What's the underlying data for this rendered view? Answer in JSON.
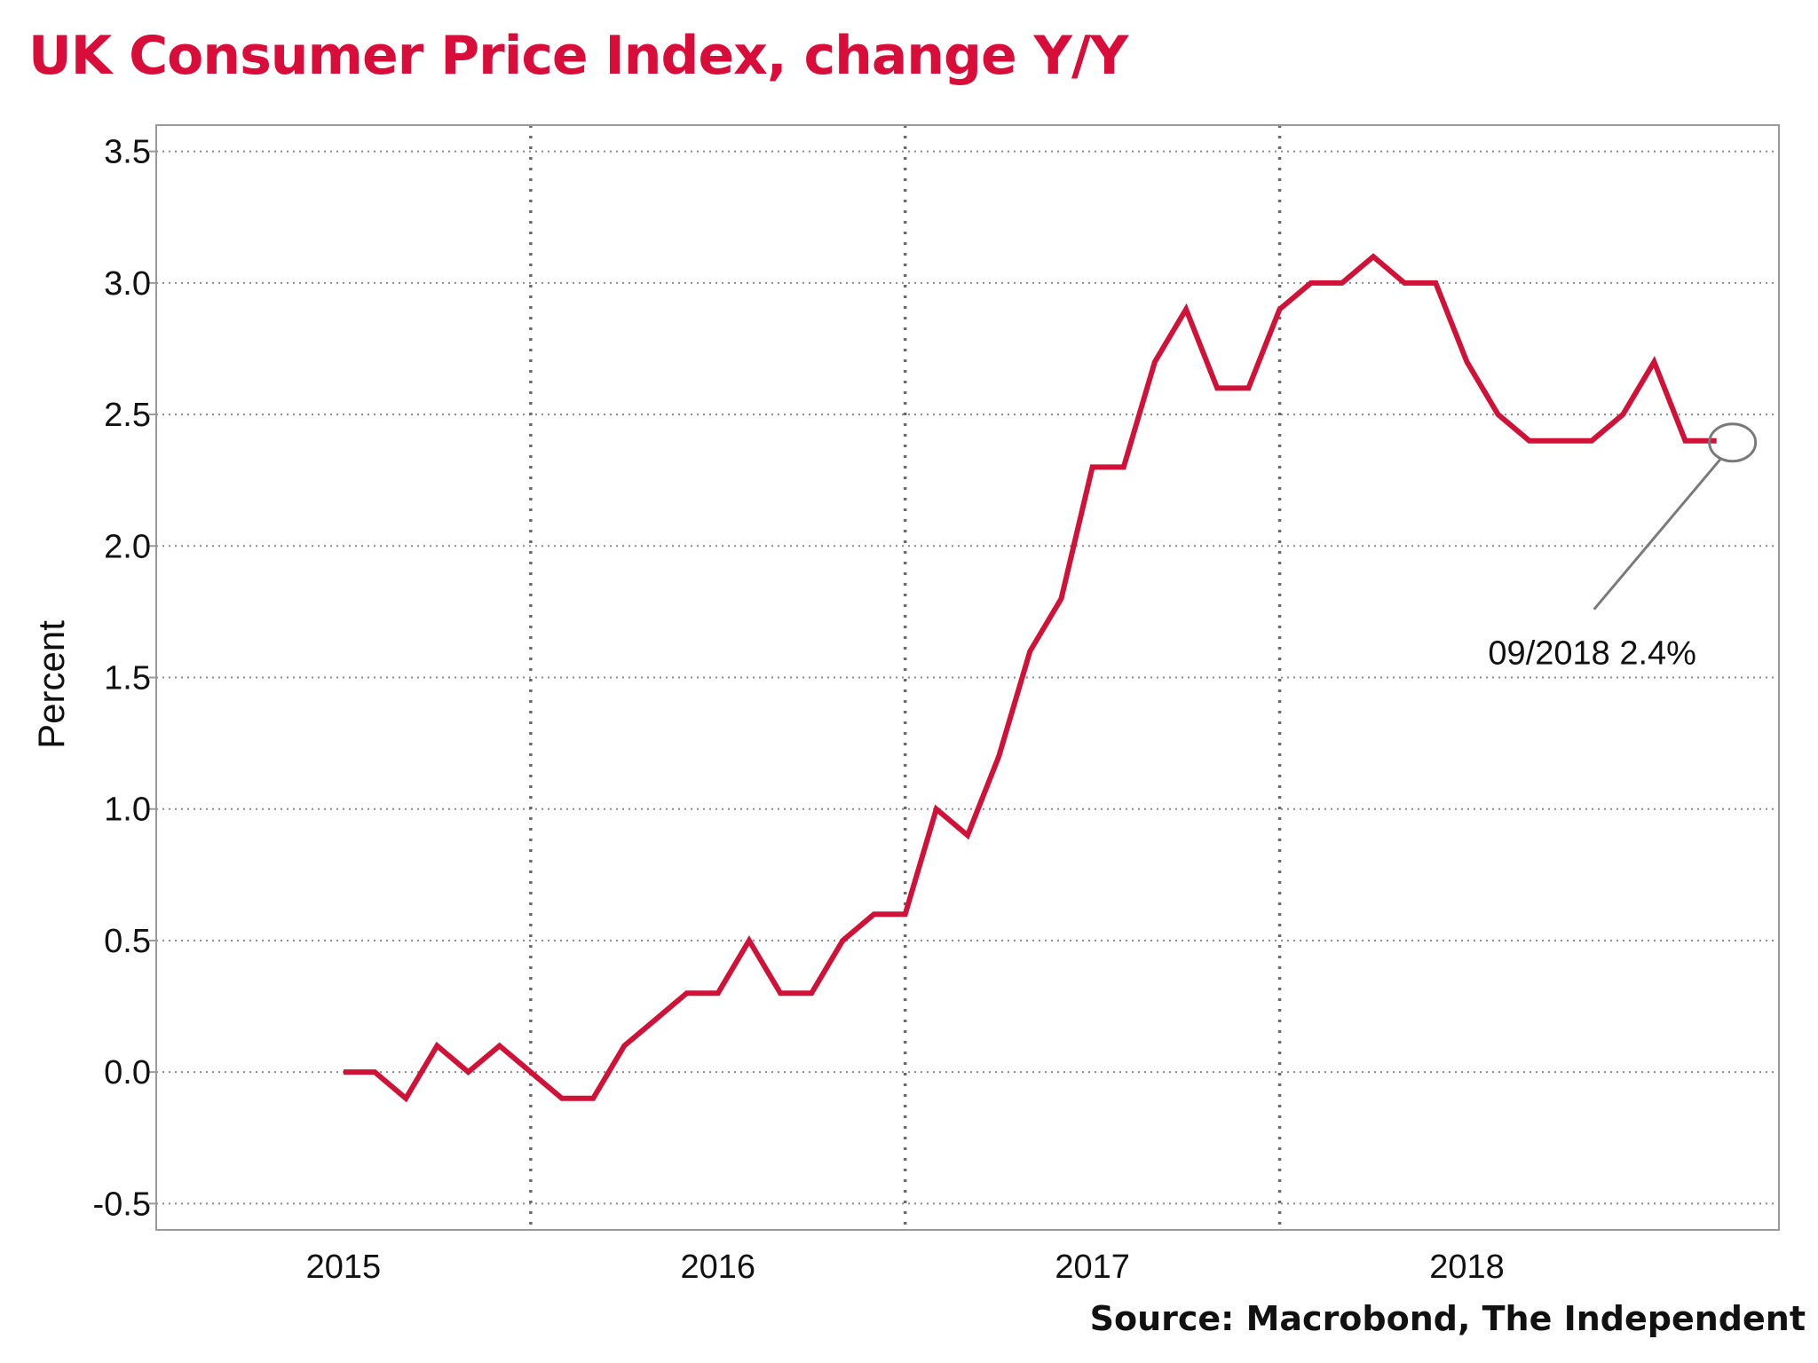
{
  "chart_data": {
    "type": "line",
    "title": "UK Consumer Price Index, change Y/Y",
    "source": "Source: Macrobond, The Independent",
    "xlabel": "",
    "ylabel": "Percent",
    "ylim": [
      -0.6,
      3.6
    ],
    "y_ticks": [
      -0.5,
      0.0,
      0.5,
      1.0,
      1.5,
      2.0,
      2.5,
      3.0,
      3.5
    ],
    "y_tick_labels": [
      "-0.5",
      "0.0",
      "0.5",
      "1.0",
      "1.5",
      "2.0",
      "2.5",
      "3.0",
      "3.5"
    ],
    "x_range_months": [
      "2014-07",
      "2018-11"
    ],
    "x_tick_labels": [
      {
        "label": "2015",
        "month": "2015-01"
      },
      {
        "label": "2016",
        "month": "2016-01"
      },
      {
        "label": "2017",
        "month": "2017-01"
      },
      {
        "label": "2018",
        "month": "2018-01"
      }
    ],
    "year_dividers": [
      "2015-07",
      "2016-07",
      "2017-07"
    ],
    "grid": true,
    "colors": {
      "title": "#d80d3a",
      "line": "#d01239",
      "grid": "#8a8a8a",
      "axis": "#9a9a9a",
      "annotation": "#7a7a7a"
    },
    "series": [
      {
        "name": "UK CPI change Y/Y",
        "x": [
          "2015-01",
          "2015-02",
          "2015-03",
          "2015-04",
          "2015-05",
          "2015-06",
          "2015-07",
          "2015-08",
          "2015-09",
          "2015-10",
          "2015-11",
          "2015-12",
          "2016-01",
          "2016-02",
          "2016-03",
          "2016-04",
          "2016-05",
          "2016-06",
          "2016-07",
          "2016-08",
          "2016-09",
          "2016-10",
          "2016-11",
          "2016-12",
          "2017-01",
          "2017-02",
          "2017-03",
          "2017-04",
          "2017-05",
          "2017-06",
          "2017-07",
          "2017-08",
          "2017-09",
          "2017-10",
          "2017-11",
          "2017-12",
          "2018-01",
          "2018-02",
          "2018-03",
          "2018-04",
          "2018-05",
          "2018-06",
          "2018-07",
          "2018-08",
          "2018-09"
        ],
        "values": [
          0.0,
          0.0,
          -0.1,
          0.1,
          0.0,
          0.1,
          0.0,
          -0.1,
          -0.1,
          0.1,
          0.2,
          0.3,
          0.3,
          0.5,
          0.3,
          0.3,
          0.5,
          0.6,
          0.6,
          1.0,
          0.9,
          1.2,
          1.6,
          1.8,
          2.3,
          2.3,
          2.7,
          2.9,
          2.6,
          2.6,
          2.9,
          3.0,
          3.0,
          3.1,
          3.0,
          3.0,
          2.7,
          2.5,
          2.4,
          2.4,
          2.4,
          2.5,
          2.7,
          2.4,
          2.4
        ]
      }
    ],
    "annotation": {
      "text": "09/2018 2.4%",
      "target_month": "2018-09",
      "target_value": 2.4
    }
  }
}
